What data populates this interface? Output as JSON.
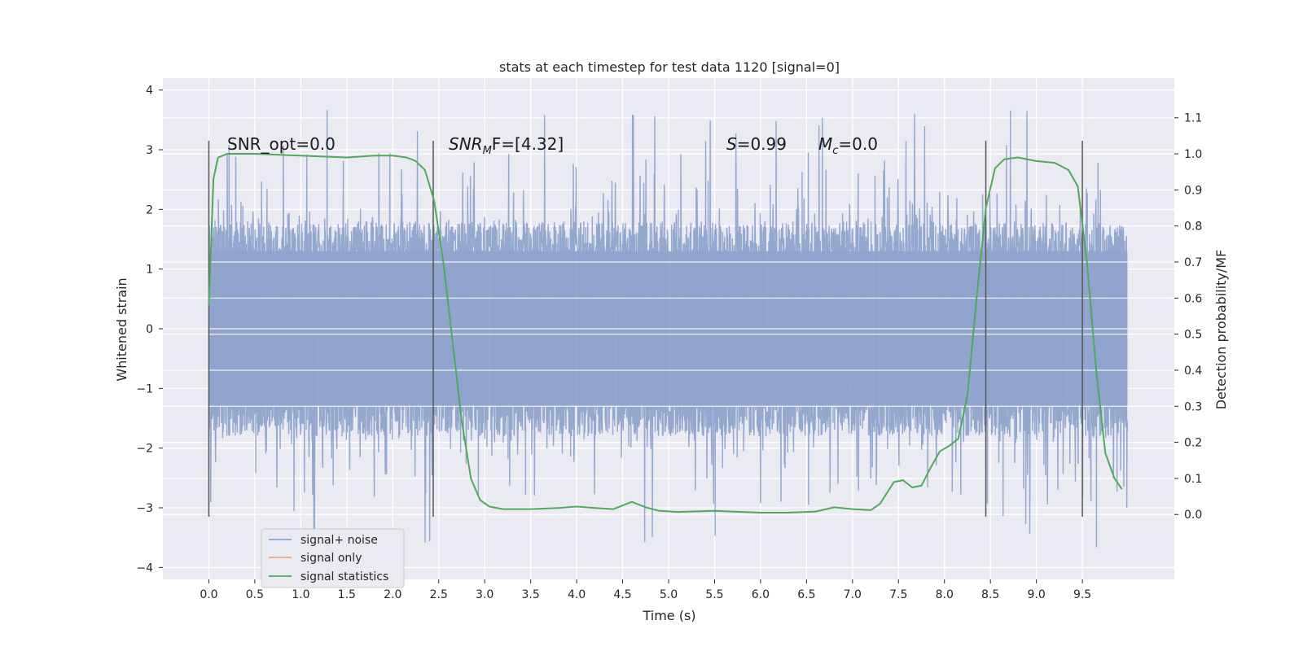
{
  "chart_data": {
    "type": "line",
    "title": "stats at each timestep for test data 1120 [signal=0]",
    "xlabel": "Time (s)",
    "ylabel": "Whitened strain",
    "ylabel_right": "Detection probability/MF",
    "xlim": [
      -0.5,
      10.5
    ],
    "ylim": [
      -4.2,
      4.2
    ],
    "ylim_right": [
      -0.18,
      1.21
    ],
    "x_ticks": [
      "0.0",
      "0.5",
      "1.0",
      "1.5",
      "2.0",
      "2.5",
      "3.0",
      "3.5",
      "4.0",
      "4.5",
      "5.0",
      "5.5",
      "6.0",
      "6.5",
      "7.0",
      "7.5",
      "8.0",
      "8.5",
      "9.0",
      "9.5"
    ],
    "x_tick_values": [
      0,
      0.5,
      1,
      1.5,
      2,
      2.5,
      3,
      3.5,
      4,
      4.5,
      5,
      5.5,
      6,
      6.5,
      7,
      7.5,
      8,
      8.5,
      9,
      9.5
    ],
    "y_ticks": [
      "4",
      "3",
      "2",
      "1",
      "0",
      "−1",
      "−2",
      "−3",
      "−4"
    ],
    "y_tick_values": [
      4,
      3,
      2,
      1,
      0,
      -1,
      -2,
      -3,
      -4
    ],
    "y_right_ticks": [
      "1.1",
      "1.0",
      "0.9",
      "0.8",
      "0.7",
      "0.6",
      "0.5",
      "0.4",
      "0.3",
      "0.2",
      "0.1",
      "0.0"
    ],
    "y_right_tick_values": [
      1.1,
      1.0,
      0.9,
      0.8,
      0.7,
      0.6,
      0.5,
      0.4,
      0.3,
      0.2,
      0.1,
      0.0
    ],
    "grid": true,
    "legend_position": "lower-left",
    "annotations": {
      "snr_opt": "SNR_opt=0.0",
      "snr_mf_main": "SNR",
      "snr_mf_sub": "M",
      "snr_mf_rest": "F=[4.32]",
      "s_sym": "S",
      "s_rest": "=0.99",
      "mc_sym": "M",
      "mc_sub": "c",
      "mc_rest": "=0.0"
    },
    "vertical_lines_x": [
      0.0,
      2.44,
      8.45,
      9.5
    ],
    "series": [
      {
        "name": "signal+ noise",
        "color": "#8fa3cc",
        "x_range": [
          0.0,
          9.99
        ],
        "noise_envelope": {
          "core_abs": 1.3,
          "typical_peak": 2.2,
          "max": 4.05,
          "min": -4.05
        }
      },
      {
        "name": "signal only",
        "color": "#e8a78c",
        "x": [],
        "y": []
      },
      {
        "name": "signal statistics",
        "color": "#4faa5d",
        "axis": "right",
        "x": [
          0.0,
          0.05,
          0.1,
          0.15,
          0.2,
          0.3,
          0.5,
          1.0,
          1.5,
          1.8,
          2.0,
          2.15,
          2.25,
          2.35,
          2.45,
          2.55,
          2.65,
          2.75,
          2.85,
          2.95,
          3.05,
          3.2,
          3.5,
          3.8,
          4.0,
          4.2,
          4.4,
          4.6,
          4.75,
          4.9,
          5.1,
          5.5,
          6.0,
          6.3,
          6.6,
          6.8,
          7.0,
          7.2,
          7.3,
          7.45,
          7.55,
          7.65,
          7.75,
          7.85,
          7.95,
          8.05,
          8.15,
          8.25,
          8.35,
          8.45,
          8.55,
          8.65,
          8.8,
          9.0,
          9.2,
          9.35,
          9.45,
          9.55,
          9.65,
          9.75,
          9.85,
          9.93
        ],
        "y": [
          0.58,
          0.93,
          0.99,
          0.995,
          1.0,
          1.0,
          1.0,
          0.995,
          0.99,
          0.995,
          0.995,
          0.99,
          0.98,
          0.955,
          0.87,
          0.7,
          0.48,
          0.26,
          0.1,
          0.04,
          0.022,
          0.015,
          0.015,
          0.018,
          0.022,
          0.018,
          0.015,
          0.035,
          0.02,
          0.01,
          0.007,
          0.01,
          0.005,
          0.005,
          0.008,
          0.02,
          0.015,
          0.012,
          0.03,
          0.09,
          0.095,
          0.075,
          0.08,
          0.13,
          0.175,
          0.19,
          0.21,
          0.33,
          0.6,
          0.85,
          0.96,
          0.985,
          0.99,
          0.98,
          0.975,
          0.955,
          0.91,
          0.7,
          0.4,
          0.17,
          0.1,
          0.07
        ]
      }
    ]
  }
}
